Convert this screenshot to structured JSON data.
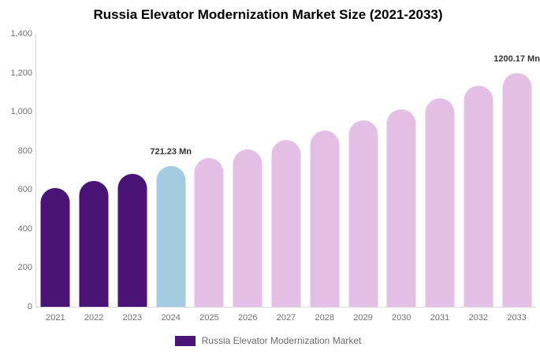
{
  "title": "Russia Elevator Modernization Market Size (2021-2033)",
  "colors": {
    "purple": "#4A1376",
    "blue": "#A4CBDF",
    "pink": "#E4BFE5",
    "axis_line": "#D9D9D9",
    "tick_text": "#707070",
    "value_label_text": "#333333",
    "legend_text": "#6B6B6B",
    "title_text": "#000000",
    "background": "#FFFFFF"
  },
  "legend": {
    "label": "Russia Elevator Modernization Market",
    "swatch_color": "#4A1376"
  },
  "chart_data": {
    "type": "bar",
    "title": "Russia Elevator Modernization Market Size (2021-2033)",
    "categories": [
      "2021",
      "2022",
      "2023",
      "2024",
      "2025",
      "2026",
      "2027",
      "2028",
      "2029",
      "2030",
      "2031",
      "2032",
      "2033"
    ],
    "series": [
      {
        "name": "Russia Elevator Modernization Market",
        "values": [
          609,
          644,
          682,
          721.23,
          763,
          808,
          855,
          904,
          957,
          1013,
          1071,
          1134,
          1200.17
        ]
      }
    ],
    "bar_colors": [
      "#4A1376",
      "#4A1376",
      "#4A1376",
      "#A4CBDF",
      "#E4BFE5",
      "#E4BFE5",
      "#E4BFE5",
      "#E4BFE5",
      "#E4BFE5",
      "#E4BFE5",
      "#E4BFE5",
      "#E4BFE5",
      "#E4BFE5"
    ],
    "labeled_points": [
      {
        "category": "2024",
        "label": "721.23 Mn"
      },
      {
        "category": "2033",
        "label": "1200.17 Mn"
      }
    ],
    "ylim": [
      0,
      1400
    ],
    "ytick_values": [
      0,
      200,
      400,
      600,
      800,
      1000,
      1200,
      1400
    ],
    "ytick_labels": [
      "0",
      "200",
      "400",
      "600",
      "800",
      "1,000",
      "1,200",
      "1,400"
    ],
    "grid": false,
    "legend_position": "bottom"
  }
}
